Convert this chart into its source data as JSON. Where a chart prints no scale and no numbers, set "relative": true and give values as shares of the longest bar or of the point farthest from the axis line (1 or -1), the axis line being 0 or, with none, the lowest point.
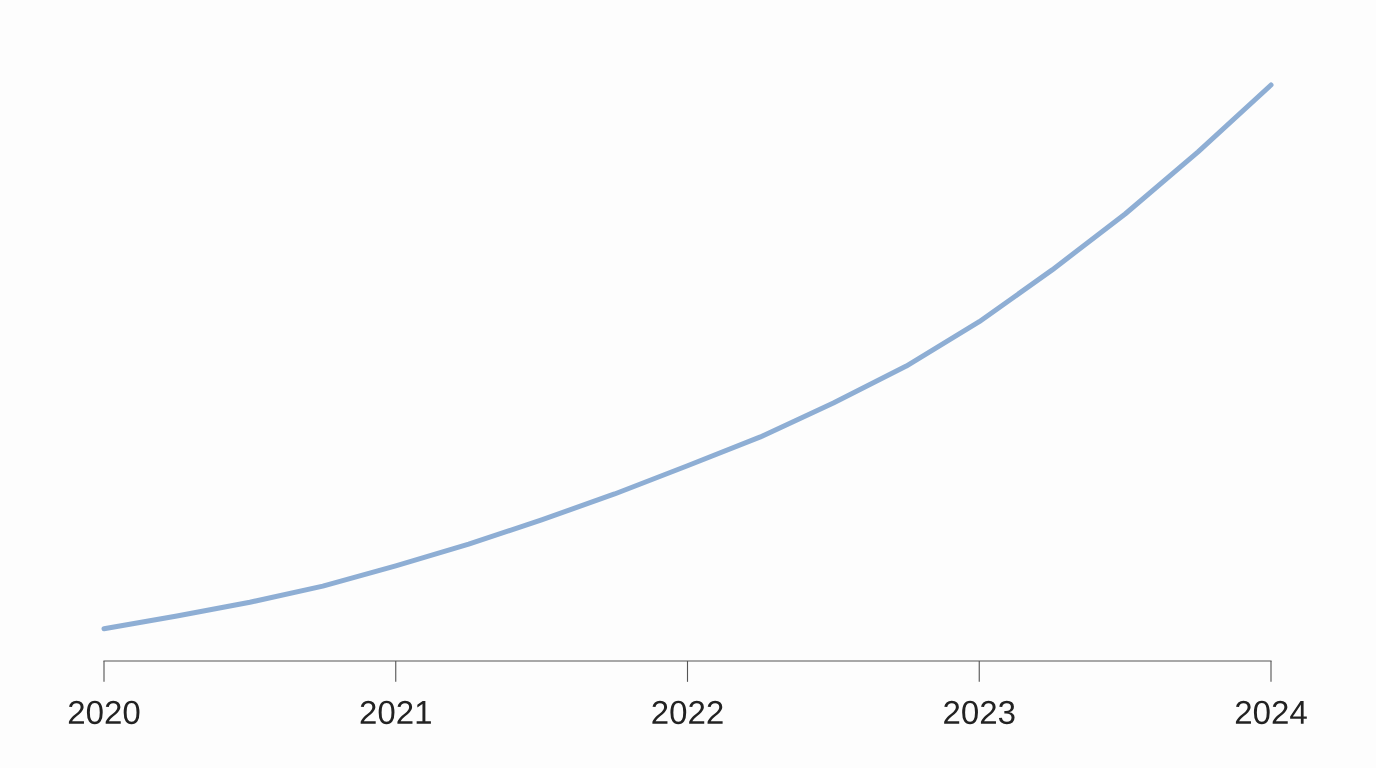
{
  "chart_data": {
    "type": "line",
    "relative": true,
    "x": [
      2020,
      2020.25,
      2020.5,
      2020.75,
      2021,
      2021.25,
      2021.5,
      2021.75,
      2022,
      2022.25,
      2022.5,
      2022.75,
      2023,
      2023.25,
      2023.5,
      2023.75,
      2024
    ],
    "values": [
      0.056,
      0.078,
      0.102,
      0.13,
      0.165,
      0.203,
      0.245,
      0.29,
      0.339,
      0.389,
      0.448,
      0.512,
      0.589,
      0.679,
      0.776,
      0.884,
      1.0
    ],
    "color": "#8eaed4",
    "line_style": "solid",
    "xlim": [
      2020,
      2024
    ],
    "xticks": [
      2020,
      2021,
      2022,
      2023,
      2024
    ],
    "tick_labels": "x"
  }
}
